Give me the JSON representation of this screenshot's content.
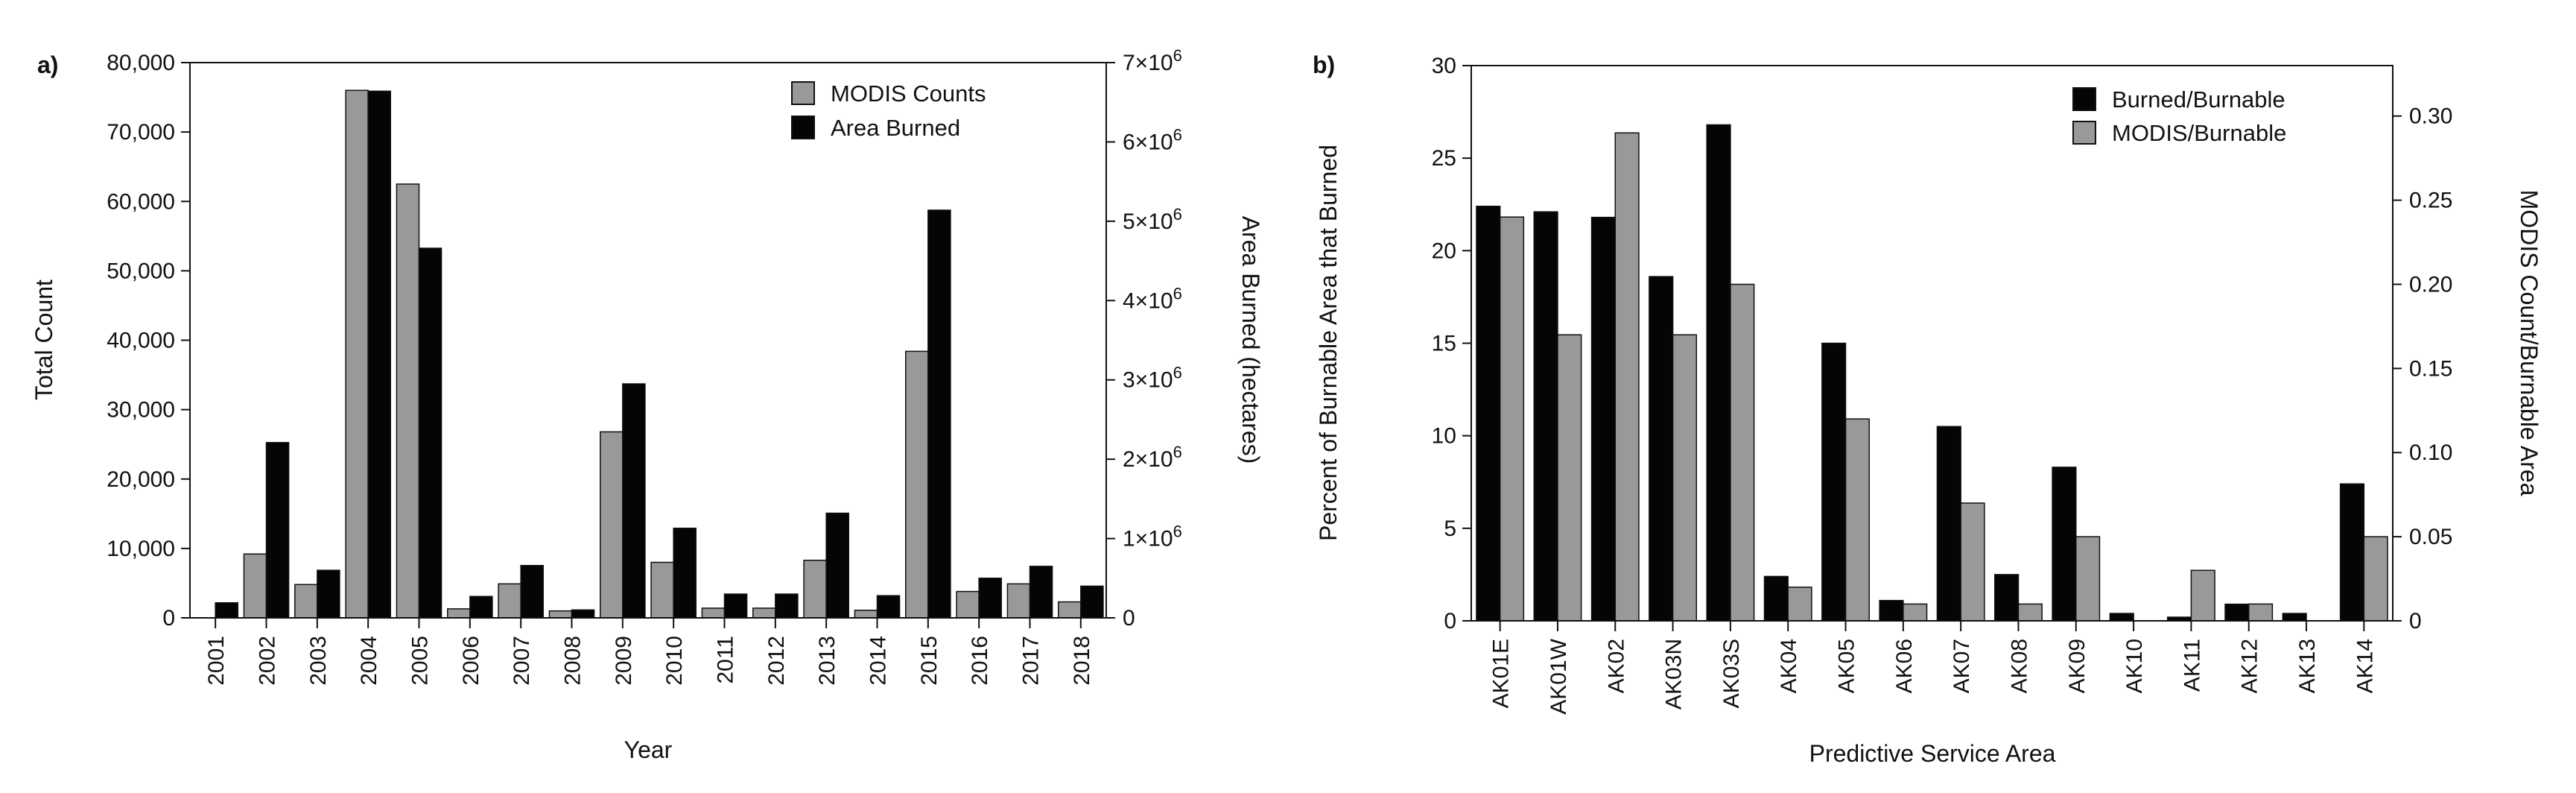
{
  "chart_data": [
    {
      "panel_label": "a)",
      "type": "bar",
      "title": "",
      "xlabel": "Year",
      "ylabel_left": "Total Count",
      "ylabel_right": "Area Burned (hectares)",
      "categories": [
        "2001",
        "2002",
        "2003",
        "2004",
        "2005",
        "2006",
        "2007",
        "2008",
        "2009",
        "2010",
        "2011",
        "2012",
        "2013",
        "2014",
        "2015",
        "2016",
        "2017",
        "2018"
      ],
      "ylim_left": [
        0,
        80000
      ],
      "ylim_right": [
        0,
        7000000
      ],
      "left_ticks": [
        0,
        10000,
        20000,
        30000,
        40000,
        50000,
        60000,
        70000,
        80000
      ],
      "left_tick_labels": [
        "0",
        "10,000",
        "20,000",
        "30,000",
        "40,000",
        "50,000",
        "60,000",
        "70,000",
        "80,000"
      ],
      "right_ticks": [
        0,
        1000000,
        2000000,
        3000000,
        4000000,
        5000000,
        6000000,
        7000000
      ],
      "right_tick_mantissas": [
        "0",
        "1×10",
        "2×10",
        "3×10",
        "4×10",
        "5×10",
        "6×10",
        "7×10"
      ],
      "right_tick_exponent": "6",
      "legend_position": "top-right",
      "series": [
        {
          "name": "MODIS Counts",
          "axis": "left",
          "color": "#999999",
          "values": [
            0,
            9200,
            4800,
            76000,
            62500,
            1300,
            4900,
            1000,
            26800,
            8000,
            1400,
            1400,
            8300,
            1100,
            38400,
            3800,
            4900,
            2300
          ]
        },
        {
          "name": "Area Burned",
          "axis": "right",
          "color": "#050505",
          "values": [
            190000,
            2210000,
            600000,
            6640000,
            4660000,
            270000,
            660000,
            100000,
            2950000,
            1130000,
            300000,
            300000,
            1320000,
            280000,
            5140000,
            500000,
            650000,
            400000
          ]
        }
      ]
    },
    {
      "panel_label": "b)",
      "type": "bar",
      "title": "",
      "xlabel": "Predictive Service Area",
      "ylabel_left": "Percent of Burnable Area that Burned",
      "ylabel_right": "MODIS Count/Burnable Area",
      "categories": [
        "AK01E",
        "AK01W",
        "AK02",
        "AK03N",
        "AK03S",
        "AK04",
        "AK05",
        "AK06",
        "AK07",
        "AK08",
        "AK09",
        "AK10",
        "AK11",
        "AK12",
        "AK13",
        "AK14"
      ],
      "ylim_left": [
        0,
        30
      ],
      "ylim_right": [
        0,
        0.33
      ],
      "left_ticks": [
        0,
        5,
        10,
        15,
        20,
        25,
        30
      ],
      "left_tick_labels": [
        "0",
        "5",
        "10",
        "15",
        "20",
        "25",
        "30"
      ],
      "right_ticks": [
        0,
        0.05,
        0.1,
        0.15,
        0.2,
        0.25,
        0.3
      ],
      "right_tick_labels": [
        "0",
        "0.05",
        "0.10",
        "0.15",
        "0.20",
        "0.25",
        "0.30"
      ],
      "legend_position": "top-right",
      "series": [
        {
          "name": "Burned/Burnable",
          "axis": "left",
          "color": "#050505",
          "values": [
            22.4,
            22.1,
            21.8,
            18.6,
            26.8,
            2.4,
            15.0,
            1.1,
            10.5,
            2.5,
            8.3,
            0.4,
            0.2,
            0.9,
            0.4,
            7.4
          ]
        },
        {
          "name": "MODIS/Burnable",
          "axis": "right",
          "color": "#999999",
          "values": [
            0.24,
            0.17,
            0.29,
            0.17,
            0.2,
            0.02,
            0.12,
            0.01,
            0.07,
            0.01,
            0.05,
            0.0,
            0.03,
            0.01,
            0.0,
            0.05
          ]
        }
      ]
    }
  ]
}
